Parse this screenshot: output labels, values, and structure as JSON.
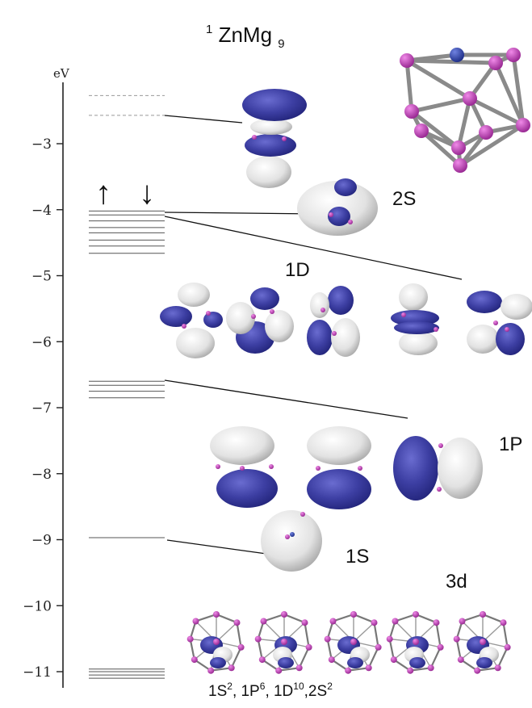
{
  "title": {
    "sup": "1",
    "main": "ZnMg",
    "sub": "9"
  },
  "axis": {
    "unit": "eV",
    "ticks": [
      "−3",
      "−4",
      "−5",
      "−6",
      "−7",
      "−8",
      "−9",
      "−10",
      "−11"
    ],
    "tick_values": [
      -3,
      -4,
      -5,
      -6,
      -7,
      -8,
      -9,
      -10,
      -11
    ]
  },
  "spin_arrows": {
    "up": "↑",
    "down": "↓"
  },
  "levels": {
    "unoccupied": [
      -2.27,
      -2.57
    ],
    "twoS": [
      -4.02,
      -4.08
    ],
    "oneD": [
      -4.17,
      -4.27,
      -4.35,
      -4.46,
      -4.55,
      -4.66
    ],
    "oneP": [
      -6.6,
      -6.66,
      -6.75,
      -6.85
    ],
    "oneS": [
      -8.97
    ],
    "threeD": [
      -10.96,
      -11.0,
      -11.05,
      -11.1
    ]
  },
  "orbital_labels": {
    "s2": "2S",
    "d1": "1D",
    "p1": "1P",
    "s1": "1S",
    "d3": "3d"
  },
  "configuration": {
    "a": "1S",
    "a_sup": "2",
    "b": ", 1P",
    "b_sup": "6",
    "c": ", 1D",
    "c_sup": "10",
    "d": ",2S",
    "d_sup": "2"
  },
  "colors": {
    "lobe_blue": "#3d3fa3",
    "lobe_white": "#e4e4e4",
    "atom": "#b03aa8",
    "zn_atom": "#2e3fa0",
    "line": "#222222"
  }
}
